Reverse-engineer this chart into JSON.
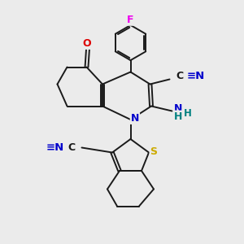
{
  "bg_color": "#ebebeb",
  "bond_color": "#1a1a1a",
  "bond_width": 1.4,
  "atom_colors": {
    "F": "#ee00ee",
    "O": "#dd0000",
    "N": "#0000cc",
    "S": "#ccaa00",
    "C": "#1a1a1a",
    "H": "#008080"
  },
  "font_size": 8.5
}
